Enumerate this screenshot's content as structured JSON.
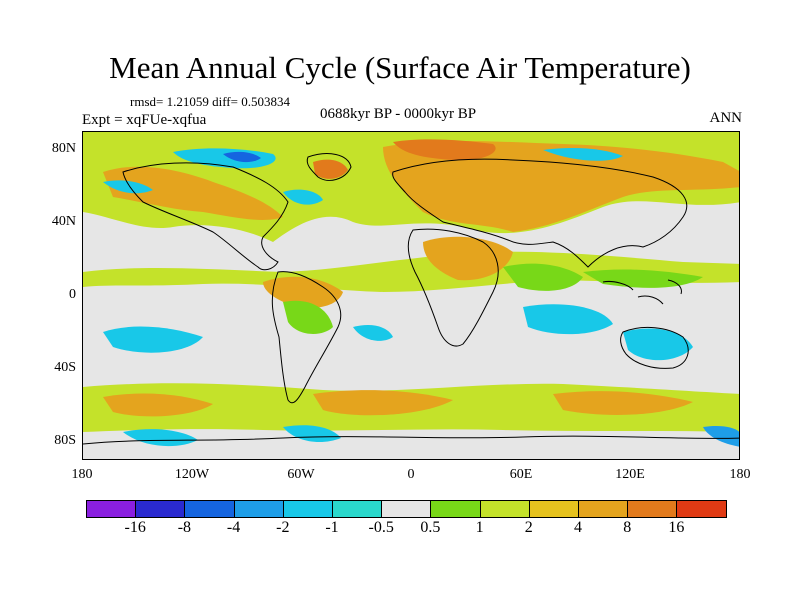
{
  "title": "Mean Annual Cycle (Surface Air Temperature)",
  "stats": "rmsd= 1.21059 diff= 0.503834",
  "experiment": "Expt = xqFUe-xqfua",
  "period": "0688kyr BP - 0000kyr BP",
  "season": "ANN",
  "y_axis_labels": [
    "80N",
    "40N",
    "0",
    "40S",
    "80S"
  ],
  "x_axis_labels": [
    "180",
    "120W",
    "60W",
    "0",
    "60E",
    "120E",
    "180"
  ],
  "colorbar": {
    "labels": [
      "-16",
      "-8",
      "-4",
      "-2",
      "-1",
      "-0.5",
      "0.5",
      "1",
      "2",
      "4",
      "8",
      "16"
    ],
    "colors": [
      "#8a1fe0",
      "#2a2ad0",
      "#1565e0",
      "#1e9ee8",
      "#18c8e8",
      "#2ad8cc",
      "#e6e6e6",
      "#78d818",
      "#c4e22a",
      "#e6c21e",
      "#e4a41e",
      "#e27a1c",
      "#e03a14"
    ]
  },
  "palette": {
    "background": "#e6e6e6",
    "warm_light": "#c4e22a",
    "warm_mid": "#e4a41e",
    "warm_strong": "#e27a1c",
    "cool": "#18c8e8",
    "cold": "#1565e0",
    "green": "#78d818",
    "coast": "#000000"
  }
}
